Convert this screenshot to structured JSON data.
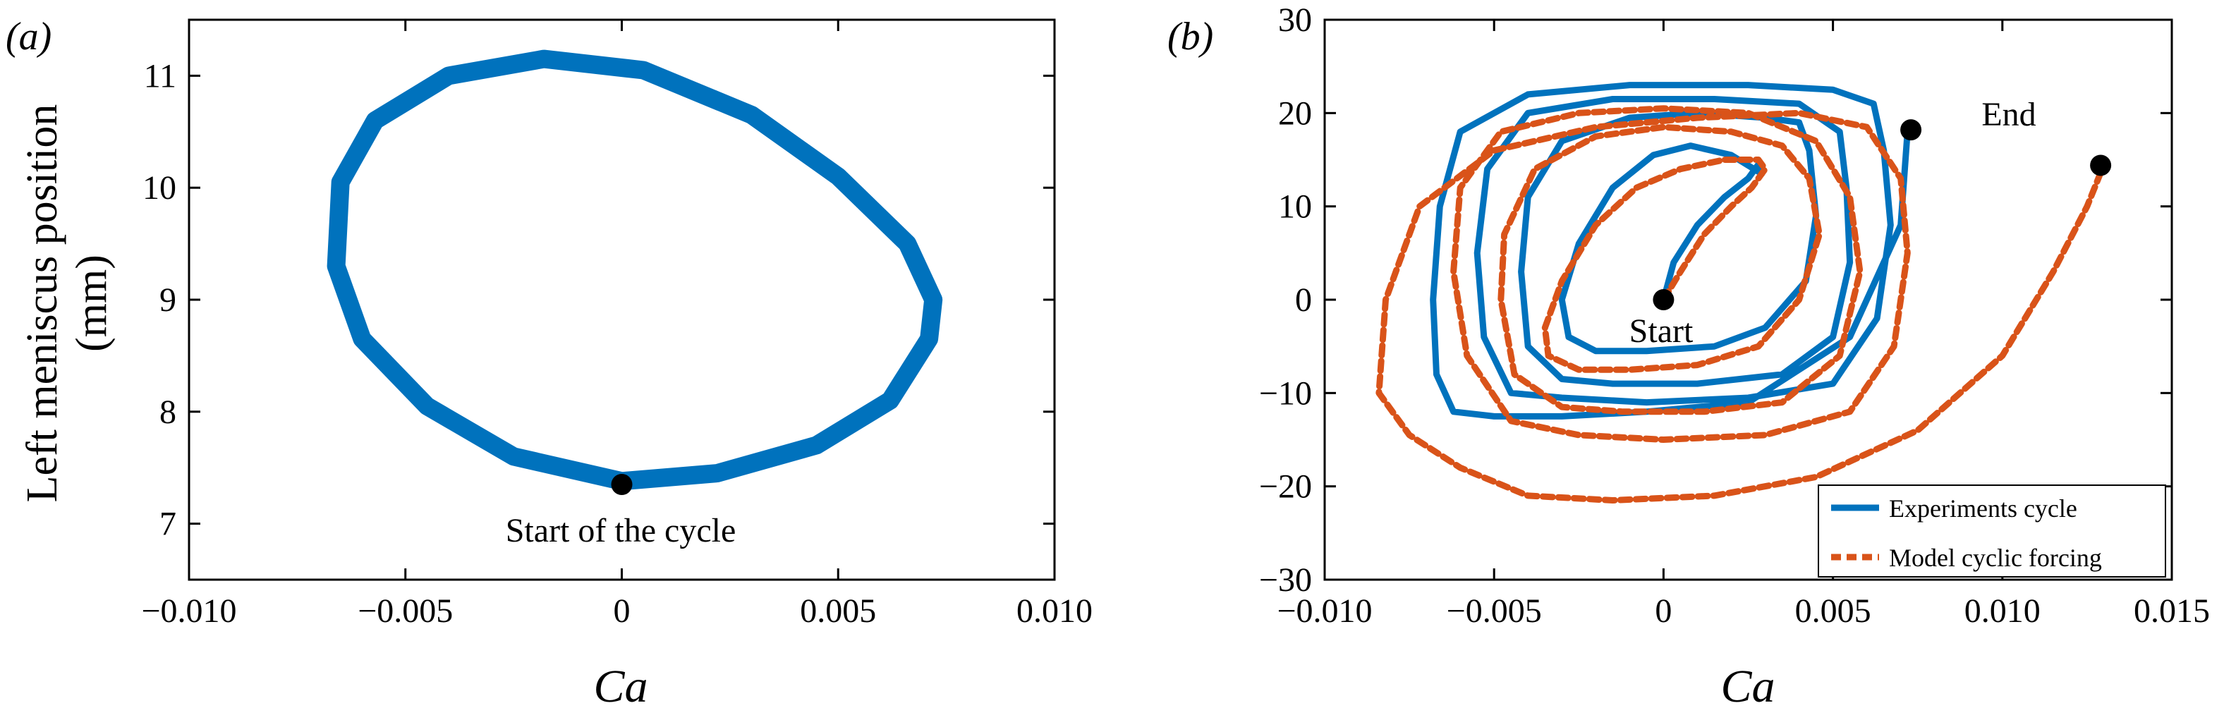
{
  "colors": {
    "experiment": "#0072bd",
    "model": "#d95319",
    "marker": "#000000"
  },
  "chart_data": [
    {
      "panel_label": "(a)",
      "type": "line",
      "xlabel": "Ca",
      "ylabel_line1": "Left meniscus position",
      "ylabel_line2": "(mm)",
      "xlim": [
        -0.01,
        0.01
      ],
      "ylim": [
        6.5,
        11.5
      ],
      "xticks": [
        -0.01,
        -0.005,
        0,
        0.005,
        0.01
      ],
      "xtick_labels": [
        "−0.010",
        "−0.005",
        "0",
        "0.005",
        "0.010"
      ],
      "yticks": [
        7,
        8,
        9,
        10,
        11
      ],
      "ytick_labels": [
        "7",
        "8",
        "9",
        "10",
        "11"
      ],
      "legend": null,
      "grid": false,
      "series": [
        {
          "style": "solid",
          "description_points": "closed loop (repeated cycles)",
          "x": [
            0.0,
            0.0022,
            0.0045,
            0.0062,
            0.0071,
            0.0072,
            0.0066,
            0.005,
            0.003,
            0.0005,
            -0.0018,
            -0.004,
            -0.0057,
            -0.0065,
            -0.0066,
            -0.006,
            -0.0045,
            -0.0025,
            0.0
          ],
          "y": [
            7.38,
            7.45,
            7.7,
            8.1,
            8.65,
            9.0,
            9.5,
            10.1,
            10.65,
            11.05,
            11.15,
            11.0,
            10.6,
            10.05,
            9.3,
            8.65,
            8.05,
            7.6,
            7.38
          ]
        }
      ],
      "markers": [
        {
          "x": 0.0,
          "y": 7.35
        }
      ],
      "annotations": [
        {
          "text": "Start of the cycle",
          "x": 0.0,
          "y": 7.35
        }
      ]
    },
    {
      "panel_label": "(b)",
      "type": "line",
      "xlabel": "Ca",
      "ylabel": "",
      "xlim": [
        -0.01,
        0.015
      ],
      "ylim": [
        -30,
        30
      ],
      "xticks": [
        -0.01,
        -0.005,
        0,
        0.005,
        0.01,
        0.015
      ],
      "xtick_labels": [
        "−0.010",
        "−0.005",
        "0",
        "0.005",
        "0.010",
        "0.015"
      ],
      "yticks": [
        -30,
        -20,
        -10,
        0,
        10,
        20,
        30
      ],
      "ytick_labels": [
        "−30",
        "−20",
        "−10",
        "0",
        "10",
        "20",
        "30"
      ],
      "legend_position": "bottom-right",
      "grid": false,
      "series": [
        {
          "name": "Experiments cycle",
          "style": "solid",
          "x": [
            0.0,
            0.0003,
            0.001,
            0.0018,
            0.0025,
            0.0028,
            0.0029,
            0.002,
            0.0008,
            -0.0003,
            -0.0015,
            -0.0025,
            -0.003,
            -0.0028,
            -0.002,
            -0.0005,
            0.0015,
            0.003,
            0.0042,
            0.0045,
            0.0043,
            0.004,
            0.003,
            0.001,
            -0.001,
            -0.003,
            -0.004,
            -0.0042,
            -0.004,
            -0.003,
            -0.0015,
            0.001,
            0.0035,
            0.005,
            0.0055,
            0.0054,
            0.0052,
            0.004,
            0.0015,
            -0.0015,
            -0.004,
            -0.0052,
            -0.0055,
            -0.0053,
            -0.0045,
            -0.003,
            -0.0005,
            0.0025,
            0.005,
            0.0063,
            0.0067,
            0.0065,
            0.0062,
            0.005,
            0.0025,
            -0.001,
            -0.004,
            -0.006,
            -0.0066,
            -0.0068,
            -0.0067,
            -0.0062,
            -0.005,
            -0.003,
            -0.0005,
            0.0025,
            0.0055,
            0.007,
            0.0072
          ],
          "y": [
            0,
            4,
            8,
            11,
            13,
            14.5,
            13.5,
            15.5,
            16.5,
            15.5,
            12,
            6,
            0,
            -4,
            -5.5,
            -5.5,
            -5,
            -3,
            2,
            9,
            16,
            19,
            19.5,
            20,
            19.5,
            17,
            11,
            3,
            -5,
            -8.5,
            -9,
            -9,
            -8,
            -4,
            4,
            12,
            18,
            21,
            21.5,
            21.5,
            20,
            14,
            5,
            -4,
            -10,
            -10.5,
            -11,
            -10.5,
            -9,
            -2,
            8,
            16,
            21,
            22.5,
            23,
            23,
            22,
            18,
            10,
            0,
            -8,
            -12,
            -12.5,
            -12.5,
            -12,
            -11,
            -4,
            8,
            18
          ]
        },
        {
          "name": "Model cyclic forcing",
          "style": "dashed",
          "x": [
            0.0,
            0.0005,
            0.0012,
            0.002,
            0.0026,
            0.003,
            0.0028,
            0.0018,
            0.0005,
            -0.0008,
            -0.002,
            -0.003,
            -0.0035,
            -0.0034,
            -0.0025,
            -0.001,
            0.001,
            0.0028,
            0.004,
            0.0046,
            0.0043,
            0.0035,
            0.002,
            0.0,
            -0.002,
            -0.0038,
            -0.0047,
            -0.0048,
            -0.0044,
            -0.003,
            -0.0012,
            0.0012,
            0.0035,
            0.0052,
            0.0058,
            0.0055,
            0.0045,
            0.0025,
            0.0,
            -0.0025,
            -0.0048,
            -0.006,
            -0.0062,
            -0.0058,
            -0.0045,
            -0.0025,
            0.0,
            0.003,
            0.0055,
            0.0068,
            0.0072,
            0.007,
            0.006,
            0.004,
            0.001,
            -0.002,
            -0.005,
            -0.0072,
            -0.0082,
            -0.0084,
            -0.0075,
            -0.006,
            -0.004,
            -0.0015,
            0.0015,
            0.0045,
            0.0075,
            0.01,
            0.0115,
            0.0125,
            0.013
          ],
          "y": [
            0,
            3,
            7,
            10,
            12,
            14,
            15,
            15,
            14,
            12,
            8,
            2,
            -3,
            -6,
            -7.5,
            -7.5,
            -7,
            -5,
            0,
            7,
            13,
            16.5,
            18,
            18.5,
            17.5,
            14,
            7,
            0,
            -8,
            -11.5,
            -12,
            -12,
            -11,
            -6,
            3,
            11,
            17,
            20,
            20.5,
            20,
            18,
            12,
            3,
            -6,
            -13,
            -14.5,
            -15,
            -14.5,
            -12,
            -5,
            5,
            13,
            18.5,
            20,
            19.5,
            18.5,
            16,
            10,
            0,
            -10,
            -14.5,
            -18,
            -21,
            -21.5,
            -21,
            -19,
            -14,
            -6,
            3,
            10,
            14.5
          ]
        }
      ],
      "markers": [
        {
          "x": 0.0,
          "y": 0.0
        },
        {
          "x": 0.0073,
          "y": 18.2
        },
        {
          "x": 0.0129,
          "y": 14.4
        }
      ],
      "annotations": [
        {
          "text": "Start",
          "x": 0.0005,
          "y": -3
        },
        {
          "text": "End",
          "x": 0.0093,
          "y": 20
        }
      ]
    }
  ]
}
